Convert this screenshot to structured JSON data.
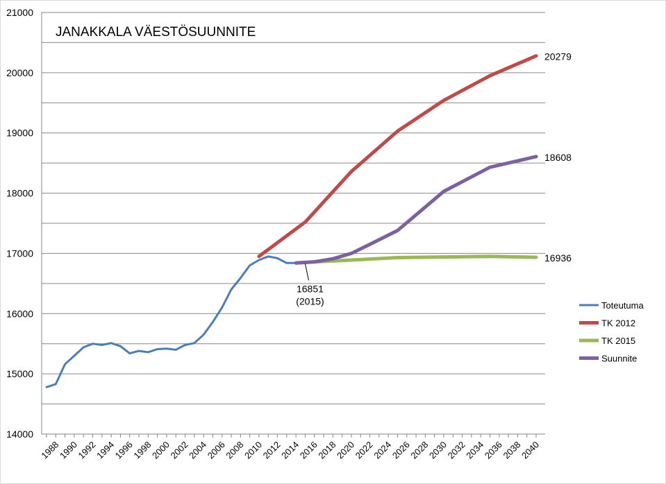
{
  "chart_data": {
    "type": "line",
    "title": "JANAKKALA VÄESTÖSUUNNITE",
    "xlabel": "",
    "ylabel": "",
    "ylim": [
      14000,
      21000
    ],
    "xlim": [
      1987,
      2040
    ],
    "y_ticks": [
      14000,
      15000,
      16000,
      17000,
      18000,
      19000,
      20000,
      21000
    ],
    "x_ticks": [
      1988,
      1990,
      1992,
      1994,
      1996,
      1998,
      2000,
      2002,
      2004,
      2006,
      2008,
      2010,
      2012,
      2014,
      2016,
      2018,
      2020,
      2022,
      2024,
      2026,
      2028,
      2030,
      2032,
      2034,
      2036,
      2038,
      2040
    ],
    "grid": "horizontal",
    "legend_position": "right",
    "series": [
      {
        "name": "Toteutuma",
        "color": "#4a7ebb",
        "width": 3,
        "points": [
          [
            1987,
            14780
          ],
          [
            1988,
            14830
          ],
          [
            1989,
            15160
          ],
          [
            1990,
            15300
          ],
          [
            1991,
            15440
          ],
          [
            1992,
            15500
          ],
          [
            1993,
            15480
          ],
          [
            1994,
            15510
          ],
          [
            1995,
            15460
          ],
          [
            1996,
            15340
          ],
          [
            1997,
            15380
          ],
          [
            1998,
            15360
          ],
          [
            1999,
            15410
          ],
          [
            2000,
            15420
          ],
          [
            2001,
            15400
          ],
          [
            2002,
            15480
          ],
          [
            2003,
            15510
          ],
          [
            2004,
            15650
          ],
          [
            2005,
            15860
          ],
          [
            2006,
            16100
          ],
          [
            2007,
            16400
          ],
          [
            2008,
            16590
          ],
          [
            2009,
            16800
          ],
          [
            2010,
            16890
          ],
          [
            2011,
            16950
          ],
          [
            2012,
            16920
          ],
          [
            2013,
            16840
          ],
          [
            2014,
            16840
          ]
        ]
      },
      {
        "name": "TK 2012",
        "color": "#be4b48",
        "width": 5,
        "points": [
          [
            2010,
            16950
          ],
          [
            2015,
            17520
          ],
          [
            2020,
            18360
          ],
          [
            2025,
            19030
          ],
          [
            2030,
            19540
          ],
          [
            2035,
            19950
          ],
          [
            2040,
            20279
          ]
        ]
      },
      {
        "name": "TK 2015",
        "color": "#98b954",
        "width": 5,
        "points": [
          [
            2014,
            16840
          ],
          [
            2015,
            16851
          ],
          [
            2020,
            16890
          ],
          [
            2025,
            16930
          ],
          [
            2030,
            16940
          ],
          [
            2035,
            16950
          ],
          [
            2040,
            16936
          ]
        ]
      },
      {
        "name": "Suunnite",
        "color": "#7d60a0",
        "width": 5,
        "points": [
          [
            2014,
            16840
          ],
          [
            2016,
            16860
          ],
          [
            2018,
            16910
          ],
          [
            2020,
            17000
          ],
          [
            2022,
            17150
          ],
          [
            2025,
            17380
          ],
          [
            2030,
            18030
          ],
          [
            2035,
            18430
          ],
          [
            2040,
            18608
          ]
        ]
      }
    ],
    "end_labels": [
      {
        "series": "TK 2012",
        "text": "20279",
        "y": 20279
      },
      {
        "series": "Suunnite",
        "text": "18608",
        "y": 18608
      },
      {
        "series": "TK 2015",
        "text": "16936",
        "y": 16936
      }
    ],
    "annotation": {
      "line1": "16851",
      "line2": "(2015)",
      "point": [
        2015,
        16851
      ]
    }
  }
}
